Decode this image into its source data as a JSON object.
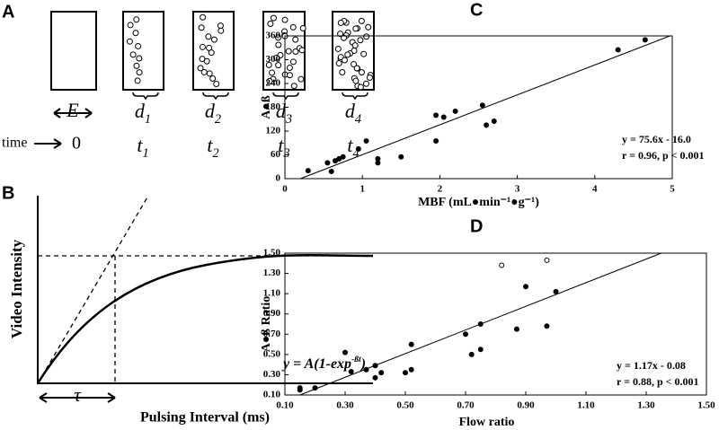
{
  "panel_a": {
    "label": "A",
    "time_label": "time",
    "time_zero": "0",
    "interval": "E",
    "frames": [
      {
        "name": "d",
        "sub": "1",
        "time": "t",
        "time_sub": "1"
      },
      {
        "name": "d",
        "sub": "2",
        "time": "t",
        "time_sub": "2"
      },
      {
        "name": "d",
        "sub": "3",
        "time": "t",
        "time_sub": "3"
      },
      {
        "name": "d",
        "sub": "4",
        "time": "t",
        "time_sub": "4"
      }
    ]
  },
  "panel_b": {
    "label": "B",
    "y_label": "Video Intensity",
    "x_label": "Pulsing Interval (ms)",
    "equation": "y = A(1-exp",
    "equation_exponent": "-ßt",
    "equation_end": ")",
    "interval": "τ"
  },
  "chart_data": [
    {
      "type": "scatter",
      "label": "C",
      "x_label": "MBF (mL●min⁻¹●g⁻¹)",
      "y_label": "A●ß",
      "annotations": [
        "y = 75.6x - 16.0",
        "r = 0.96, p < 0.001"
      ],
      "xlim": [
        0,
        5
      ],
      "xticks": [
        0,
        1,
        2,
        3,
        4,
        5
      ],
      "ylim": [
        0,
        360
      ],
      "yticks": [
        0,
        60,
        120,
        180,
        240,
        300,
        360
      ],
      "series": [
        {
          "color": "#000000",
          "fill": "#000000",
          "x": [
            0.3,
            0.55,
            0.6,
            0.65,
            0.7,
            0.75,
            0.95,
            1.05,
            1.2,
            1.2,
            1.5,
            1.95,
            1.95,
            2.05,
            2.2,
            2.55,
            2.6,
            2.7,
            4.3,
            4.65
          ],
          "values": [
            20,
            40,
            18,
            45,
            50,
            55,
            75,
            95,
            50,
            40,
            55,
            95,
            160,
            155,
            170,
            185,
            135,
            145,
            325,
            350
          ]
        }
      ],
      "fit_line": {
        "x": [
          0.2,
          4.97
        ],
        "values": [
          0,
          360
        ]
      }
    },
    {
      "type": "scatter",
      "label": "D",
      "x_label": "Flow ratio",
      "y_label": "A●ß Ratio",
      "annotations": [
        "y = 1.17x - 0.08",
        "r = 0.88, p < 0.001"
      ],
      "xlim": [
        0.1,
        1.5
      ],
      "xticks": [
        {
          "value": 0.1,
          "label": "0.10"
        },
        {
          "value": 0.3,
          "label": "0.30"
        },
        {
          "value": 0.5,
          "label": "0.50"
        },
        {
          "value": 0.7,
          "label": "0.70"
        },
        {
          "value": 0.9,
          "label": "0.90"
        },
        {
          "value": 1.1,
          "label": "1.10"
        },
        {
          "value": 1.3,
          "label": "1.30"
        },
        {
          "value": 1.5,
          "label": "1.50"
        }
      ],
      "ylim": [
        0.1,
        1.5
      ],
      "yticks": [
        {
          "value": 0.1,
          "label": "0.10"
        },
        {
          "value": 0.3,
          "label": "0.30"
        },
        {
          "value": 0.5,
          "label": "0.50"
        },
        {
          "value": 0.7,
          "label": "0.70"
        },
        {
          "value": 0.9,
          "label": "0.90"
        },
        {
          "value": 1.1,
          "label": "1.10"
        },
        {
          "value": 1.3,
          "label": "1.30"
        },
        {
          "value": 1.5,
          "label": "1.50"
        }
      ],
      "series": [
        {
          "color": "#000000",
          "fill": "#000000",
          "x": [
            0.15,
            0.15,
            0.2,
            0.3,
            0.32,
            0.37,
            0.4,
            0.4,
            0.42,
            0.5,
            0.52,
            0.52,
            0.7,
            0.72,
            0.75,
            0.75,
            0.87,
            0.9,
            0.97,
            1.0
          ],
          "values": [
            0.15,
            0.17,
            0.17,
            0.52,
            0.33,
            0.35,
            0.27,
            0.39,
            0.32,
            0.32,
            0.35,
            0.6,
            0.7,
            0.5,
            0.55,
            0.8,
            0.75,
            1.17,
            0.78,
            1.12
          ]
        },
        {
          "color": "#000000",
          "fill": "#ffffff",
          "x": [
            0.82,
            0.97
          ],
          "values": [
            1.38,
            1.43
          ]
        }
      ],
      "fit_line": {
        "x": [
          0.15,
          1.35
        ],
        "values": [
          0.1,
          1.5
        ]
      }
    }
  ]
}
